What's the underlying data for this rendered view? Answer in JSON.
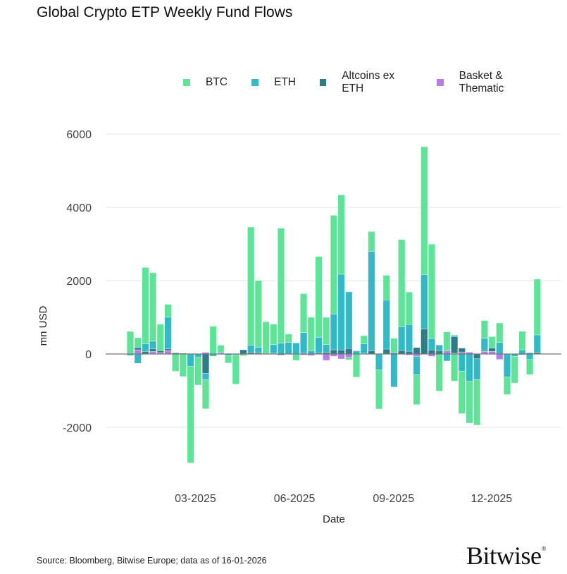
{
  "title": "Global Crypto ETP Weekly Fund Flows",
  "source": "Source: Bloomberg, Bitwise Europe; data as of  16-01-2026",
  "logo": "Bitwise",
  "chart_data": {
    "type": "bar",
    "stacked": true,
    "title": "Global Crypto ETP Weekly Fund Flows",
    "xlabel": "Date",
    "ylabel": "mn USD",
    "ylim": [
      -3500,
      6500
    ],
    "yticks": [
      -2000,
      0,
      2000,
      4000,
      6000
    ],
    "xticks": [
      {
        "date": "2025-03-01",
        "label": "03-2025"
      },
      {
        "date": "2025-06-01",
        "label": "06-2025"
      },
      {
        "date": "2025-09-01",
        "label": "09-2025"
      },
      {
        "date": "2025-12-01",
        "label": "12-2025"
      }
    ],
    "grid": "horizontal",
    "legend_position": "top-right",
    "x": [
      "2025-01-03",
      "2025-01-10",
      "2025-01-17",
      "2025-01-24",
      "2025-01-31",
      "2025-02-07",
      "2025-02-14",
      "2025-02-21",
      "2025-02-28",
      "2025-03-07",
      "2025-03-14",
      "2025-03-21",
      "2025-03-28",
      "2025-04-04",
      "2025-04-11",
      "2025-04-18",
      "2025-04-25",
      "2025-05-02",
      "2025-05-09",
      "2025-05-16",
      "2025-05-23",
      "2025-05-30",
      "2025-06-06",
      "2025-06-13",
      "2025-06-20",
      "2025-06-27",
      "2025-07-04",
      "2025-07-11",
      "2025-07-18",
      "2025-07-25",
      "2025-08-01",
      "2025-08-08",
      "2025-08-15",
      "2025-08-22",
      "2025-08-29",
      "2025-09-05",
      "2025-09-12",
      "2025-09-19",
      "2025-09-26",
      "2025-10-03",
      "2025-10-10",
      "2025-10-17",
      "2025-10-24",
      "2025-10-31",
      "2025-11-07",
      "2025-11-14",
      "2025-11-21",
      "2025-11-28",
      "2025-12-05",
      "2025-12-12",
      "2025-12-19",
      "2025-12-26",
      "2026-01-02",
      "2026-01-09",
      "2026-01-16"
    ],
    "series": [
      {
        "name": "BTC",
        "color": "#5fe398",
        "values": [
          610,
          270,
          2080,
          1865,
          720,
          350,
          -470,
          -615,
          -2630,
          -750,
          -790,
          755,
          185,
          -200,
          -795,
          -50,
          3220,
          1820,
          880,
          560,
          3130,
          230,
          -175,
          1060,
          910,
          2200,
          745,
          2690,
          2165,
          -65,
          -630,
          225,
          540,
          -1065,
          670,
          400,
          2375,
          885,
          -815,
          3495,
          2575,
          -1010,
          520,
          -740,
          -1155,
          -1140,
          -1240,
          485,
          310,
          530,
          -475,
          -725,
          505,
          -410,
          1520
        ]
      },
      {
        "name": "ETH",
        "color": "#33b8c5",
        "values": [
          -40,
          -255,
          210,
          210,
          0,
          865,
          0,
          0,
          -340,
          -95,
          -180,
          -60,
          25,
          -45,
          -30,
          0,
          190,
          150,
          0,
          235,
          300,
          315,
          300,
          565,
          90,
          425,
          205,
          975,
          2065,
          1545,
          85,
          255,
          2710,
          -435,
          1340,
          -900,
          650,
          730,
          -500,
          1475,
          310,
          150,
          -190,
          40,
          -470,
          -745,
          -570,
          325,
          0,
          315,
          -630,
          -65,
          115,
          -150,
          480
        ]
      },
      {
        "name": "Altcoins ex ETH",
        "color": "#2e7c86",
        "values": [
          5,
          60,
          70,
          70,
          50,
          45,
          30,
          20,
          0,
          0,
          -525,
          0,
          0,
          0,
          0,
          115,
          50,
          35,
          0,
          20,
          -30,
          0,
          0,
          20,
          0,
          30,
          50,
          115,
          110,
          150,
          0,
          20,
          90,
          0,
          135,
          30,
          95,
          75,
          175,
          685,
          110,
          95,
          0,
          450,
          115,
          0,
          -130,
          30,
          95,
          -10,
          0,
          0,
          -20,
          30,
          40
        ]
      },
      {
        "name": "Basket & Thematic",
        "color": "#b67de9",
        "values": [
          0,
          115,
          0,
          70,
          40,
          95,
          0,
          0,
          0,
          0,
          45,
          0,
          30,
          0,
          0,
          0,
          0,
          0,
          0,
          0,
          0,
          0,
          0,
          -30,
          -45,
          0,
          -175,
          -65,
          -135,
          -95,
          0,
          0,
          0,
          0,
          0,
          0,
          0,
          -30,
          -65,
          0,
          -65,
          0,
          85,
          20,
          45,
          50,
          0,
          70,
          70,
          -145,
          0,
          0,
          0,
          0,
          0
        ]
      }
    ]
  }
}
